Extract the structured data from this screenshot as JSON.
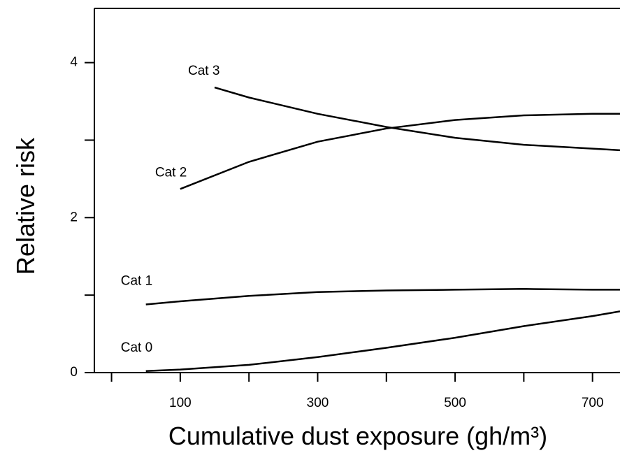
{
  "chart_data": {
    "type": "line",
    "xlabel": "Cumulative dust exposure (gh/m³)",
    "ylabel": "Relative risk",
    "xlim": [
      -25,
      740
    ],
    "ylim": [
      0,
      4.7
    ],
    "xticks": [
      100,
      300,
      500,
      700
    ],
    "xminor_ticks": [
      0,
      200,
      400,
      600
    ],
    "yticks": [
      0,
      2,
      4
    ],
    "yminor_ticks": [
      1,
      3
    ],
    "series": [
      {
        "name": "Cat 0",
        "color": "#000000",
        "x": [
          50,
          100,
          200,
          300,
          400,
          500,
          600,
          700,
          740
        ],
        "values": [
          0.02,
          0.04,
          0.1,
          0.2,
          0.32,
          0.45,
          0.6,
          0.73,
          0.79
        ]
      },
      {
        "name": "Cat 1",
        "color": "#000000",
        "x": [
          50,
          100,
          200,
          300,
          400,
          500,
          600,
          700,
          740
        ],
        "values": [
          0.88,
          0.92,
          0.99,
          1.04,
          1.06,
          1.07,
          1.08,
          1.07,
          1.07
        ]
      },
      {
        "name": "Cat 2",
        "color": "#000000",
        "x": [
          100,
          200,
          300,
          400,
          500,
          600,
          700,
          740
        ],
        "values": [
          2.37,
          2.72,
          2.98,
          3.15,
          3.26,
          3.32,
          3.34,
          3.34
        ]
      },
      {
        "name": "Cat 3",
        "color": "#000000",
        "x": [
          150,
          200,
          300,
          400,
          500,
          600,
          700,
          740
        ],
        "values": [
          3.68,
          3.55,
          3.34,
          3.17,
          3.03,
          2.94,
          2.89,
          2.87
        ]
      }
    ]
  }
}
